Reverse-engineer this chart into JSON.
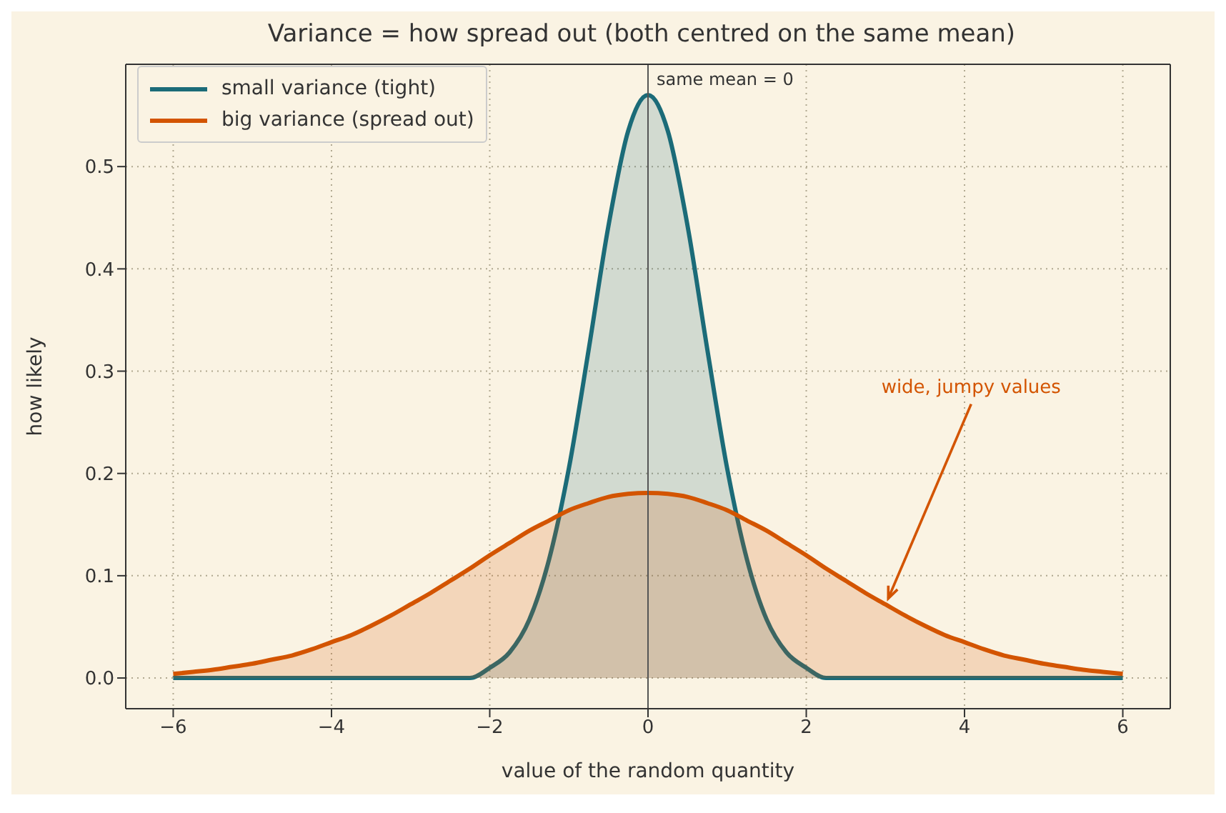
{
  "chart_data": {
    "type": "area",
    "title": "Variance = how spread out (both centred on the same mean)",
    "xlabel": "value of the random quantity",
    "ylabel": "how likely",
    "x": [
      -6,
      -5.75,
      -5.5,
      -5.25,
      -5,
      -4.75,
      -4.5,
      -4.25,
      -4,
      -3.75,
      -3.5,
      -3.25,
      -3,
      -2.75,
      -2.5,
      -2.25,
      -2,
      -1.75,
      -1.5,
      -1.25,
      -1,
      -0.75,
      -0.5,
      -0.25,
      0,
      0.25,
      0.5,
      0.75,
      1,
      1.25,
      1.5,
      1.75,
      2,
      2.25,
      2.5,
      2.75,
      3,
      3.25,
      3.5,
      3.75,
      4,
      4.25,
      4.5,
      4.75,
      5,
      5.25,
      5.5,
      5.75,
      6
    ],
    "series": [
      {
        "name": "small variance (tight)",
        "color": "#1b6b78",
        "values": [
          0,
          0,
          0,
          0,
          0,
          0,
          0,
          0,
          0,
          0,
          0,
          0,
          0,
          0,
          0,
          0,
          0.01,
          0.025,
          0.057,
          0.116,
          0.205,
          0.321,
          0.442,
          0.535,
          0.57,
          0.535,
          0.442,
          0.321,
          0.205,
          0.116,
          0.057,
          0.025,
          0.01,
          0,
          0,
          0,
          0,
          0,
          0,
          0,
          0,
          0,
          0,
          0,
          0,
          0,
          0,
          0,
          0
        ]
      },
      {
        "name": "big variance (spread out)",
        "color": "#d35400",
        "values": [
          0.004,
          0.006,
          0.008,
          0.011,
          0.014,
          0.018,
          0.022,
          0.028,
          0.035,
          0.042,
          0.051,
          0.061,
          0.072,
          0.083,
          0.095,
          0.107,
          0.12,
          0.132,
          0.144,
          0.154,
          0.164,
          0.171,
          0.177,
          0.18,
          0.181,
          0.18,
          0.177,
          0.171,
          0.164,
          0.154,
          0.144,
          0.132,
          0.12,
          0.107,
          0.095,
          0.083,
          0.072,
          0.061,
          0.051,
          0.042,
          0.035,
          0.028,
          0.022,
          0.018,
          0.014,
          0.011,
          0.008,
          0.006,
          0.004
        ]
      }
    ],
    "xlim": [
      -6.6,
      6.6
    ],
    "xticks": [
      {
        "value": -6,
        "label": "−6"
      },
      {
        "value": -4,
        "label": "−4"
      },
      {
        "value": -2,
        "label": "−2"
      },
      0,
      2,
      4,
      6
    ],
    "ylim": [
      -0.03,
      0.6
    ],
    "yticks": [
      {
        "value": 0,
        "label": "0.0"
      },
      0.1,
      0.2,
      0.3,
      0.4,
      0.5
    ],
    "grid": true,
    "legend": "top left",
    "ref_lines": [
      {
        "axis": "x",
        "value": 0,
        "label": "same mean = 0",
        "color": "#555555"
      }
    ],
    "annotations": [
      {
        "text": "wide, jumpy values",
        "x": 3,
        "y": 0.075
      }
    ]
  }
}
